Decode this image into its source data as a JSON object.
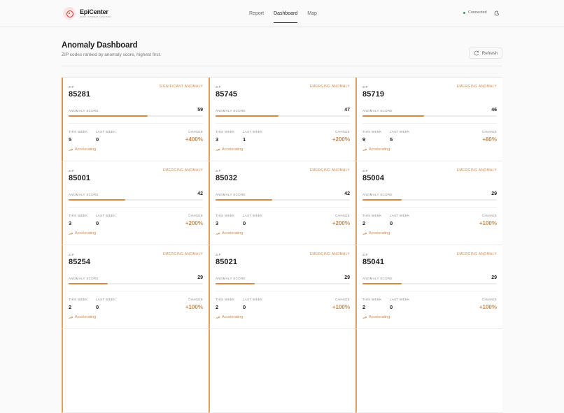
{
  "brand": {
    "name": "EpiCenter",
    "tagline": "EARLY OUTBREAK DETECTION"
  },
  "nav": {
    "items": [
      "Report",
      "Dashboard",
      "Map"
    ],
    "active": "Dashboard"
  },
  "status": {
    "label": "Connected",
    "color": "#3a9a5c"
  },
  "page": {
    "title": "Anomaly Dashboard",
    "subtitle": "ZIP codes ranked by anomaly score, highest first.",
    "refresh_label": "Refresh"
  },
  "labels": {
    "zip": "ZIP",
    "anomaly_score": "ANOMALY SCORE",
    "this_week": "THIS WEEK",
    "last_week": "LAST WEEK",
    "change": "CHANGE"
  },
  "colors": {
    "accent": "#d08a4a",
    "status_ok": "#3a9a5c"
  },
  "cards": [
    {
      "zip": "85281",
      "badge": "SIGNIFICANT ANOMALY",
      "score": "59",
      "score_pct": 59,
      "this_week": "5",
      "last_week": "0",
      "change": "+400%",
      "trend": "Accelerating"
    },
    {
      "zip": "85745",
      "badge": "EMERGING ANOMALY",
      "score": "47",
      "score_pct": 47,
      "this_week": "3",
      "last_week": "1",
      "change": "+200%",
      "trend": "Accelerating"
    },
    {
      "zip": "85719",
      "badge": "EMERGING ANOMALY",
      "score": "46",
      "score_pct": 46,
      "this_week": "9",
      "last_week": "5",
      "change": "+80%",
      "trend": "Accelerating"
    },
    {
      "zip": "85001",
      "badge": "EMERGING ANOMALY",
      "score": "42",
      "score_pct": 42,
      "this_week": "3",
      "last_week": "0",
      "change": "+200%",
      "trend": "Accelerating"
    },
    {
      "zip": "85032",
      "badge": "EMERGING ANOMALY",
      "score": "42",
      "score_pct": 42,
      "this_week": "3",
      "last_week": "0",
      "change": "+200%",
      "trend": "Accelerating"
    },
    {
      "zip": "85004",
      "badge": "EMERGING ANOMALY",
      "score": "29",
      "score_pct": 29,
      "this_week": "2",
      "last_week": "0",
      "change": "+100%",
      "trend": "Accelerating"
    },
    {
      "zip": "85254",
      "badge": "EMERGING ANOMALY",
      "score": "29",
      "score_pct": 29,
      "this_week": "2",
      "last_week": "0",
      "change": "+100%",
      "trend": "Accelerating"
    },
    {
      "zip": "85021",
      "badge": "EMERGING ANOMALY",
      "score": "29",
      "score_pct": 29,
      "this_week": "2",
      "last_week": "0",
      "change": "+100%",
      "trend": "Accelerating"
    },
    {
      "zip": "85041",
      "badge": "EMERGING ANOMALY",
      "score": "29",
      "score_pct": 29,
      "this_week": "2",
      "last_week": "0",
      "change": "+100%",
      "trend": "Accelerating"
    }
  ]
}
